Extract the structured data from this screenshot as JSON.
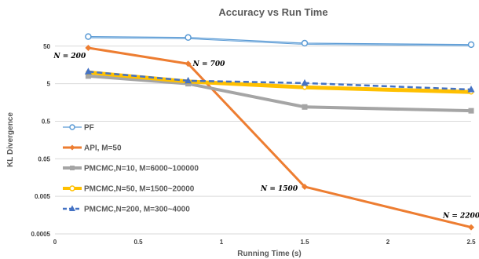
{
  "chart_data": {
    "type": "line",
    "title": "Accuracy vs Run Time",
    "xlabel": "Running Time (s)",
    "ylabel": "KL Divergence",
    "xlim": [
      0,
      2.5
    ],
    "ylim": [
      0.0005,
      200
    ],
    "yscale": "log",
    "x_ticks": [
      "0",
      "0.5",
      "1",
      "1.5",
      "2",
      "2.5"
    ],
    "y_ticks": [
      "0.0005",
      "0.005",
      "0.05",
      "0.5",
      "5",
      "50"
    ],
    "grid": "horizontal",
    "legend_position": "left",
    "series": [
      {
        "name": "PF",
        "color": "#5b9bd5",
        "marker": "circle",
        "points": [
          [
            0.2,
            90
          ],
          [
            0.8,
            85
          ],
          [
            1.5,
            60
          ],
          [
            2.5,
            55
          ]
        ]
      },
      {
        "name": "API, M=50",
        "color": "#ed7d31",
        "marker": "diamond",
        "points": [
          [
            0.2,
            45
          ],
          [
            0.8,
            17
          ],
          [
            1.5,
            0.009
          ],
          [
            2.5,
            0.00075
          ]
        ]
      },
      {
        "name": "PMCMC,N=10, M=6000~100000",
        "color": "#a5a5a5",
        "marker": "square",
        "points": [
          [
            0.2,
            8
          ],
          [
            0.8,
            5
          ],
          [
            1.5,
            1.2
          ],
          [
            2.5,
            0.95
          ]
        ]
      },
      {
        "name": "PMCMC,N=50, M=1500~20000",
        "color": "#ffc000",
        "marker": "circle",
        "points": [
          [
            0.2,
            10
          ],
          [
            0.8,
            5.7
          ],
          [
            1.5,
            4
          ],
          [
            2.5,
            3
          ]
        ]
      },
      {
        "name": "PMCMC,N=200, M=300~4000",
        "color": "#4472c4",
        "marker": "triangle",
        "dashed": true,
        "points": [
          [
            0.2,
            10.5
          ],
          [
            0.8,
            6
          ],
          [
            1.5,
            5.2
          ],
          [
            2.5,
            3.5
          ]
        ]
      }
    ],
    "annotations": [
      {
        "text": "N = 200",
        "x": 0.2,
        "y": 45
      },
      {
        "text": "N = 700",
        "x": 0.8,
        "y": 17
      },
      {
        "text": "N = 1500",
        "x": 1.5,
        "y": 0.009
      },
      {
        "text": "N = 2200",
        "x": 2.5,
        "y": 0.00075
      }
    ]
  }
}
